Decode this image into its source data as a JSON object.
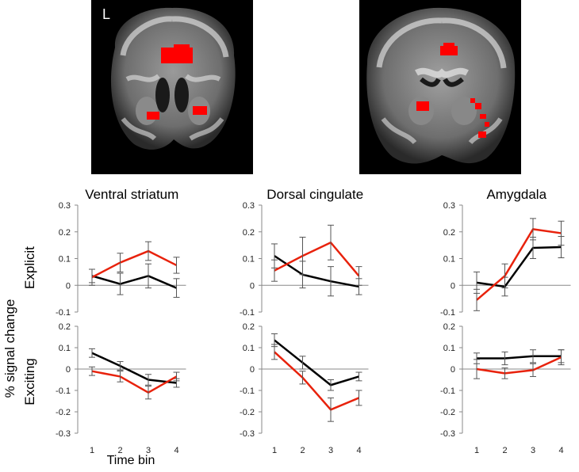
{
  "brain_images": [
    {
      "label": "L",
      "description_icon": "coronal-brain-slice-anterior"
    },
    {
      "label": "",
      "description_icon": "coronal-brain-slice-posterior"
    }
  ],
  "figure": {
    "y_axis_label": "% signal change",
    "row_labels": [
      "Explicit",
      "Exciting"
    ],
    "x_axis_label": "Time bin"
  },
  "colors": {
    "series_red": "#e8220c",
    "series_black": "#000000",
    "axis": "#888888",
    "activation": "#ff0000"
  },
  "chart_data": [
    {
      "type": "line",
      "title": "Ventral striatum",
      "row": "Explicit",
      "x": [
        1,
        2,
        3,
        4
      ],
      "ylim": [
        -0.1,
        0.3
      ],
      "yticks": [
        "0.3",
        "0.2",
        "0.1",
        "0",
        "-0.1"
      ],
      "xticks": [
        "1",
        "2",
        "3",
        "4"
      ],
      "series": [
        {
          "color": "red",
          "values": [
            0.03,
            0.085,
            0.128,
            0.075
          ],
          "err": [
            0.03,
            0.035,
            0.035,
            0.03
          ]
        },
        {
          "color": "black",
          "values": [
            0.035,
            0.005,
            0.035,
            -0.01
          ],
          "err": [
            0.025,
            0.04,
            0.045,
            0.035
          ]
        }
      ]
    },
    {
      "type": "line",
      "title": "Dorsal cingulate",
      "row": "Explicit",
      "x": [
        1,
        2,
        3,
        4
      ],
      "ylim": [
        -0.1,
        0.3
      ],
      "yticks": [
        "0.3",
        "0.2",
        "0.1",
        "0",
        "-0.1"
      ],
      "xticks": [
        "1",
        "2",
        "3",
        "4"
      ],
      "series": [
        {
          "color": "red",
          "values": [
            0.055,
            0.11,
            0.16,
            0.035
          ],
          "err": [
            0.04,
            0.07,
            0.065,
            0.035
          ]
        },
        {
          "color": "black",
          "values": [
            0.11,
            0.04,
            0.015,
            -0.005
          ],
          "err": [
            0.045,
            0.05,
            0.055,
            0.03
          ]
        }
      ]
    },
    {
      "type": "line",
      "title": "Amygdala",
      "row": "Explicit",
      "x": [
        1,
        2,
        3,
        4
      ],
      "ylim": [
        -0.1,
        0.3
      ],
      "yticks": [
        "0.3",
        "0.2",
        "0.1",
        "0",
        "-0.1"
      ],
      "xticks": [
        "1",
        "2",
        "3",
        "4"
      ],
      "series": [
        {
          "color": "red",
          "values": [
            -0.055,
            0.035,
            0.21,
            0.195
          ],
          "err": [
            0.04,
            0.045,
            0.04,
            0.045
          ]
        },
        {
          "color": "black",
          "values": [
            0.01,
            -0.005,
            0.14,
            0.143
          ],
          "err": [
            0.04,
            0.035,
            0.04,
            0.04
          ]
        }
      ]
    },
    {
      "type": "line",
      "title": "",
      "row": "Exciting",
      "x": [
        1,
        2,
        3,
        4
      ],
      "ylim": [
        -0.3,
        0.2
      ],
      "yticks": [
        "0.2",
        "0.1",
        "0",
        "-0.1",
        "-0.2",
        "-0.3"
      ],
      "xticks": [
        "1",
        "2",
        "3",
        "4"
      ],
      "series": [
        {
          "color": "red",
          "values": [
            -0.01,
            -0.035,
            -0.11,
            -0.035
          ],
          "err": [
            0.02,
            0.025,
            0.03,
            0.02
          ]
        },
        {
          "color": "black",
          "values": [
            0.075,
            0.015,
            -0.05,
            -0.065
          ],
          "err": [
            0.02,
            0.02,
            0.025,
            0.02
          ]
        }
      ]
    },
    {
      "type": "line",
      "title": "",
      "row": "Exciting",
      "x": [
        1,
        2,
        3,
        4
      ],
      "ylim": [
        -0.3,
        0.2
      ],
      "yticks": [
        "0.2",
        "0.1",
        "0",
        "-0.1",
        "-0.2",
        "-0.3"
      ],
      "xticks": [
        "1",
        "2",
        "3",
        "4"
      ],
      "series": [
        {
          "color": "red",
          "values": [
            0.08,
            -0.04,
            -0.19,
            -0.135
          ],
          "err": [
            0.035,
            0.03,
            0.055,
            0.035
          ]
        },
        {
          "color": "black",
          "values": [
            0.135,
            0.03,
            -0.075,
            -0.035
          ],
          "err": [
            0.03,
            0.03,
            0.025,
            0.02
          ]
        }
      ]
    },
    {
      "type": "line",
      "title": "",
      "row": "Exciting",
      "x": [
        1,
        2,
        3,
        4
      ],
      "ylim": [
        -0.3,
        0.2
      ],
      "yticks": [
        "0.2",
        "0.1",
        "0",
        "-0.1",
        "-0.2",
        "-0.3"
      ],
      "xticks": [
        "1",
        "2",
        "3",
        "4"
      ],
      "series": [
        {
          "color": "red",
          "values": [
            0.0,
            -0.02,
            -0.005,
            0.055
          ],
          "err": [
            0.045,
            0.025,
            0.03,
            0.035
          ]
        },
        {
          "color": "black",
          "values": [
            0.05,
            0.05,
            0.06,
            0.06
          ],
          "err": [
            0.025,
            0.03,
            0.03,
            0.03
          ]
        }
      ]
    }
  ]
}
